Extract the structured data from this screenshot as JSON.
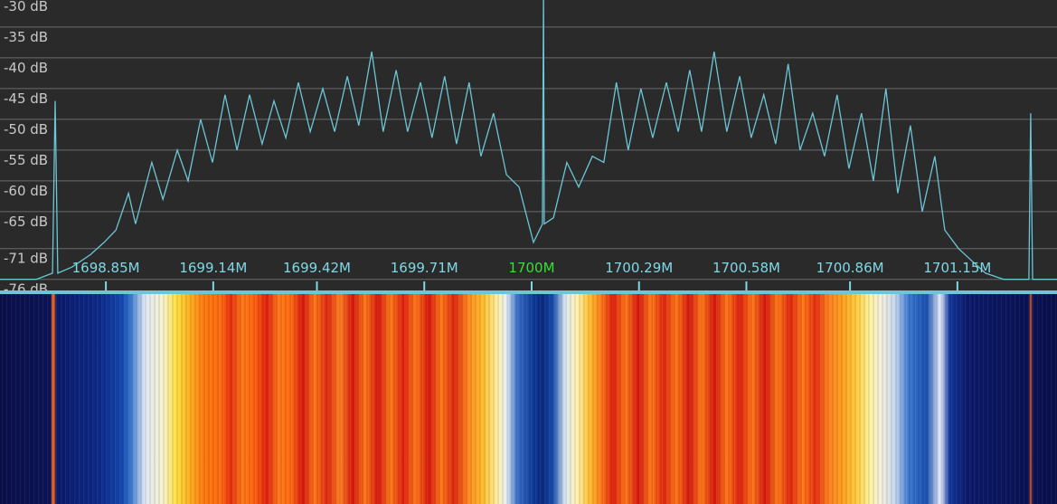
{
  "chart_data": {
    "type": "line",
    "x": [
      1698.564,
      1698.662,
      1698.706,
      1698.713,
      1698.72,
      1698.759,
      1698.808,
      1698.845,
      1698.877,
      1698.911,
      1698.93,
      1698.974,
      1699.004,
      1699.043,
      1699.072,
      1699.106,
      1699.138,
      1699.172,
      1699.204,
      1699.238,
      1699.272,
      1699.304,
      1699.336,
      1699.37,
      1699.402,
      1699.436,
      1699.468,
      1699.502,
      1699.533,
      1699.568,
      1699.599,
      1699.634,
      1699.665,
      1699.7,
      1699.731,
      1699.765,
      1699.797,
      1699.831,
      1699.863,
      1699.897,
      1699.932,
      1699.966,
      1700.005,
      1700.029,
      1700.032,
      1700.034,
      1700.059,
      1700.095,
      1700.127,
      1700.164,
      1700.195,
      1700.229,
      1700.261,
      1700.295,
      1700.327,
      1700.364,
      1700.396,
      1700.427,
      1700.459,
      1700.493,
      1700.527,
      1700.562,
      1700.593,
      1700.627,
      1700.659,
      1700.693,
      1700.725,
      1700.759,
      1700.791,
      1700.825,
      1700.857,
      1700.891,
      1700.923,
      1700.957,
      1700.989,
      1701.023,
      1701.055,
      1701.089,
      1701.116,
      1701.153,
      1701.189,
      1701.226,
      1701.275,
      1701.343,
      1701.348,
      1701.353,
      1701.419
    ],
    "series": [
      {
        "color": "#6cc6d6",
        "values": [
          -76,
          -76,
          -75,
          -47,
          -75,
          -74,
          -72,
          -70,
          -68,
          -62,
          -67,
          -57,
          -63,
          -55,
          -60,
          -50,
          -57,
          -46,
          -55,
          -46,
          -54,
          -47,
          -53,
          -44,
          -52,
          -45,
          -52,
          -43,
          -51,
          -39,
          -52,
          -42,
          -52,
          -44,
          -53,
          -43,
          -54,
          -44,
          -56,
          -49,
          -59,
          -61,
          -70,
          -67,
          -29,
          -67,
          -66,
          -57,
          -61,
          -56,
          -57,
          -44,
          -55,
          -45,
          -53,
          -44,
          -52,
          -42,
          -52,
          -39,
          -52,
          -43,
          -53,
          -46,
          -54,
          -41,
          -55,
          -49,
          -56,
          -46,
          -58,
          -49,
          -60,
          -45,
          -62,
          -51,
          -65,
          -56,
          -68,
          -71,
          -73,
          -75,
          -76,
          -76,
          -49,
          -76,
          -76
        ]
      }
    ],
    "xlim": [
      1698.564,
      1701.419
    ],
    "ylim": [
      -78.1,
      -30.6
    ],
    "yticks": [
      {
        "value": -30,
        "label": "-30 dB"
      },
      {
        "value": -35,
        "label": "-35 dB"
      },
      {
        "value": -40,
        "label": "-40 dB"
      },
      {
        "value": -45,
        "label": "-45 dB"
      },
      {
        "value": -50,
        "label": "-50 dB"
      },
      {
        "value": -55,
        "label": "-55 dB"
      },
      {
        "value": -60,
        "label": "-60 dB"
      },
      {
        "value": -65,
        "label": "-65 dB"
      },
      {
        "value": -71,
        "label": "-71 dB"
      },
      {
        "value": -76,
        "label": "-76 dB"
      }
    ],
    "xticks": [
      {
        "value": 1698.85,
        "label": "1698.85M"
      },
      {
        "value": 1699.14,
        "label": "1699.14M"
      },
      {
        "value": 1699.42,
        "label": "1699.42M"
      },
      {
        "value": 1699.71,
        "label": "1699.71M"
      },
      {
        "value": 1700,
        "label": "1700M"
      },
      {
        "value": 1700.29,
        "label": "1700.29M"
      },
      {
        "value": 1700.58,
        "label": "1700.58M"
      },
      {
        "value": 1700.86,
        "label": "1700.86M"
      },
      {
        "value": 1701.15,
        "label": "1701.15M"
      }
    ],
    "grid": true
  }
}
